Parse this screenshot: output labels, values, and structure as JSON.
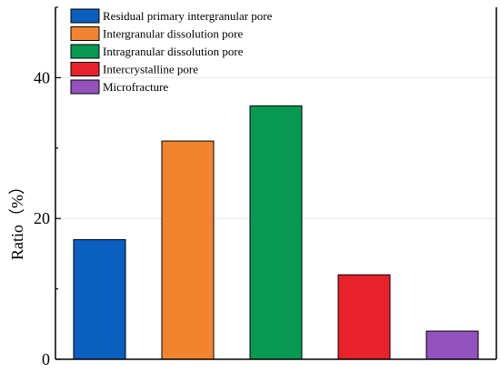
{
  "chart_data": {
    "type": "bar",
    "categories": [
      "Residual primary intergranular pore",
      "Intergranular dissolution pore",
      "Intragranular dissolution pore",
      "Intercrystalline pore",
      "Microfracture"
    ],
    "values": [
      17,
      31,
      36,
      12,
      4
    ],
    "colors": [
      "#0a5fbf",
      "#f28430",
      "#07994f",
      "#e8212a",
      "#9352be"
    ],
    "ylabel": "Ratio（%）",
    "ylim": [
      0,
      50
    ],
    "yticks": [
      0,
      20,
      40
    ],
    "grid": true,
    "legend_position": "top-left",
    "legend_entries": [
      "Residual primary intergranular pore",
      "Intergranular dissolution pore",
      "Intragranular dissolution pore",
      "Intercrystalline pore",
      "Microfracture"
    ]
  }
}
